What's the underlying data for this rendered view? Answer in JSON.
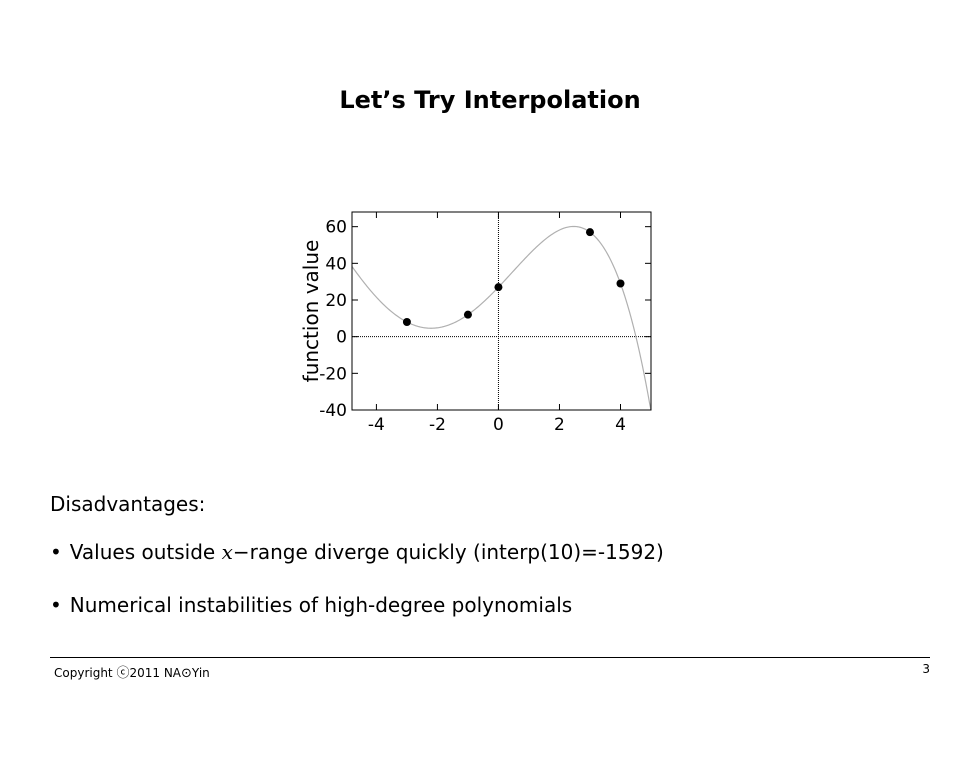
{
  "slide": {
    "title": "Let’s Try Interpolation",
    "intro": "Disadvantages:",
    "bullets": [
      {
        "before": "Values outside ",
        "math": "x",
        "after": "−range diverge quickly (interp(10)=-1592)"
      },
      {
        "text": "Numerical instabilities of high-degree polynomials"
      }
    ]
  },
  "footer": {
    "copyright_word": "Copyright ",
    "copyright_symbol": "ⓒ",
    "year": "2011 NA",
    "sun_symbol": "⊙",
    "author": "Yin",
    "page_number": "3"
  },
  "chart_data": {
    "type": "scatter",
    "title": "",
    "xlabel": "",
    "ylabel": "function value",
    "xlim": [
      -4.8,
      5
    ],
    "ylim": [
      -40,
      68
    ],
    "x_ticks": [
      -4,
      -2,
      0,
      2,
      4
    ],
    "y_ticks": [
      -40,
      -20,
      0,
      20,
      40,
      60
    ],
    "x_tick_labels": [
      "-4",
      "-2",
      "0",
      "2",
      "4"
    ],
    "y_tick_labels": [
      "-40",
      "-20",
      "0",
      "20",
      "40",
      "60"
    ],
    "grid": false,
    "zero_lines": true,
    "points": [
      {
        "x": -3,
        "y": 8
      },
      {
        "x": -1,
        "y": 12
      },
      {
        "x": 0,
        "y": 27
      },
      {
        "x": 3,
        "y": 57
      },
      {
        "x": 4,
        "y": 29
      }
    ],
    "curve": "interpolating polynomial through the points",
    "colors": {
      "points": "#000000",
      "curve": "#b0b0b0",
      "axes": "#000000"
    }
  }
}
